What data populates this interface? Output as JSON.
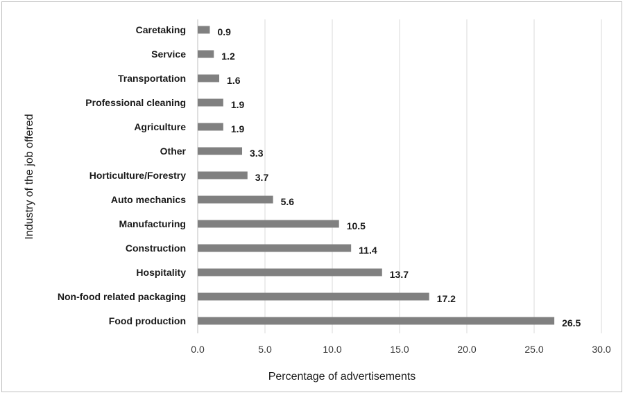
{
  "chart_data": {
    "type": "bar",
    "orientation": "horizontal",
    "categories": [
      "Caretaking",
      "Service",
      "Transportation",
      "Professional cleaning",
      "Agriculture",
      "Other",
      "Horticulture/Forestry",
      "Auto mechanics",
      "Manufacturing",
      "Construction",
      "Hospitality",
      "Non-food related packaging",
      "Food production"
    ],
    "values": [
      0.9,
      1.2,
      1.6,
      1.9,
      1.9,
      3.3,
      3.7,
      5.6,
      10.5,
      11.4,
      13.7,
      17.2,
      26.5
    ],
    "value_labels": [
      "0.9",
      "1.2",
      "1.6",
      "1.9",
      "1.9",
      "3.3",
      "3.7",
      "5.6",
      "10.5",
      "11.4",
      "13.7",
      "17.2",
      "26.5"
    ],
    "xlim": [
      0,
      30
    ],
    "xticks": [
      "0.0",
      "5.0",
      "10.0",
      "15.0",
      "20.0",
      "25.0",
      "30.0"
    ],
    "xlabel": "Percentage of advertisements",
    "ylabel": "Industry of the job offered",
    "grid": "vertical",
    "bar_color": "#808080",
    "grid_color": "#d9d9d9"
  }
}
